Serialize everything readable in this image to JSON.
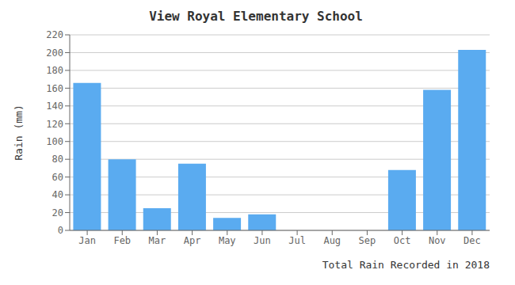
{
  "chart_data": {
    "type": "bar",
    "title": "View Royal Elementary School",
    "xlabel": "Total Rain Recorded in 2018",
    "ylabel": "Rain (mm)",
    "categories": [
      "Jan",
      "Feb",
      "Mar",
      "Apr",
      "May",
      "Jun",
      "Jul",
      "Aug",
      "Sep",
      "Oct",
      "Nov",
      "Dec"
    ],
    "values": [
      166,
      80,
      25,
      75,
      14,
      18,
      0,
      0,
      0,
      68,
      158,
      203
    ],
    "color": "#5AABF0",
    "ylim": [
      0,
      220
    ],
    "yticks": [
      0,
      20,
      40,
      60,
      80,
      100,
      120,
      140,
      160,
      180,
      200,
      220
    ],
    "grid": true
  }
}
